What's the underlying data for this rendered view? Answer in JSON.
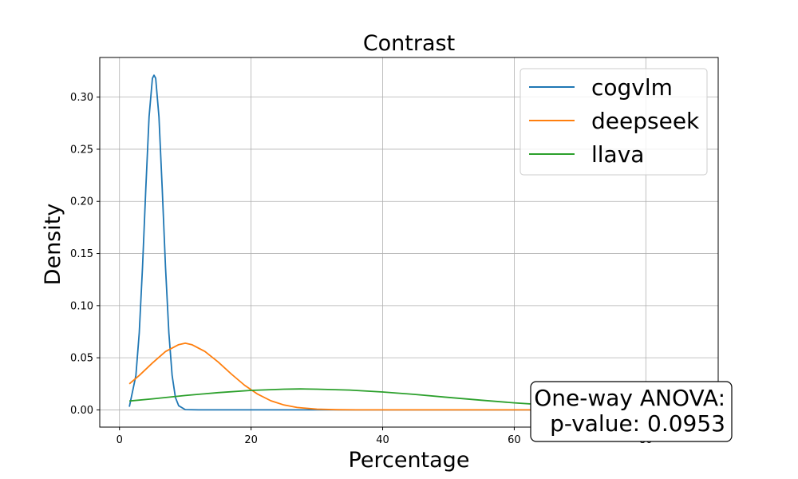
{
  "chart_data": {
    "type": "line",
    "title": "Contrast",
    "xlabel": "Percentage",
    "ylabel": "Density",
    "xlim": [
      -3,
      91
    ],
    "ylim": [
      -0.0165,
      0.338
    ],
    "xticks": [
      0,
      20,
      40,
      60,
      80
    ],
    "xtick_labels": [
      "0",
      "20",
      "40",
      "60",
      "80"
    ],
    "yticks": [
      0.0,
      0.05,
      0.1,
      0.15,
      0.2,
      0.25,
      0.3
    ],
    "ytick_labels": [
      "0.00",
      "0.05",
      "0.10",
      "0.15",
      "0.20",
      "0.25",
      "0.30"
    ],
    "grid": true,
    "legend_position": "top-right",
    "series": [
      {
        "name": "cogvlm",
        "color": "#1f77b4",
        "x": [
          1.5,
          2.5,
          3.0,
          3.5,
          4.0,
          4.5,
          5.0,
          5.25,
          5.5,
          6.0,
          6.5,
          7.0,
          7.5,
          8.0,
          8.5,
          9.0,
          10.0,
          12.0,
          20.0,
          40.0,
          60.0,
          65.0
        ],
        "y": [
          0.003,
          0.033,
          0.074,
          0.137,
          0.212,
          0.281,
          0.318,
          0.321,
          0.318,
          0.281,
          0.212,
          0.137,
          0.074,
          0.033,
          0.012,
          0.004,
          0.0003,
          0.0,
          0.0,
          0.0,
          0.0,
          0.0
        ]
      },
      {
        "name": "deepseek",
        "color": "#ff7f0e",
        "x": [
          1.5,
          3.0,
          5.0,
          7.0,
          9.0,
          10.0,
          11.0,
          13.0,
          15.0,
          17.0,
          19.0,
          21.0,
          23.0,
          25.0,
          27.0,
          30.0,
          33.0,
          36.0,
          40.0,
          50.0,
          60.0,
          70.0,
          80.0,
          86.0
        ],
        "y": [
          0.025,
          0.033,
          0.045,
          0.056,
          0.0626,
          0.064,
          0.0626,
          0.056,
          0.046,
          0.0344,
          0.0237,
          0.0151,
          0.0088,
          0.0047,
          0.0023,
          0.0007,
          0.0002,
          0.0,
          0.0,
          0.0,
          0.0,
          0.0,
          0.0,
          0.0
        ]
      },
      {
        "name": "llava",
        "color": "#2ca02c",
        "x": [
          1.5,
          5.0,
          10.0,
          15.0,
          20.0,
          25.0,
          27.5,
          30.0,
          35.0,
          40.0,
          45.0,
          50.0,
          55.0,
          60.0,
          65.0,
          70.0,
          75.0,
          80.0,
          86.0
        ],
        "y": [
          0.0085,
          0.0106,
          0.0138,
          0.0166,
          0.0187,
          0.0199,
          0.0201,
          0.0199,
          0.019,
          0.0172,
          0.0148,
          0.012,
          0.0093,
          0.0068,
          0.0047,
          0.003,
          0.0019,
          0.0011,
          0.0005
        ]
      }
    ],
    "annotation": {
      "line1": "One-way ANOVA:",
      "line2": "p-value: 0.0953"
    }
  }
}
